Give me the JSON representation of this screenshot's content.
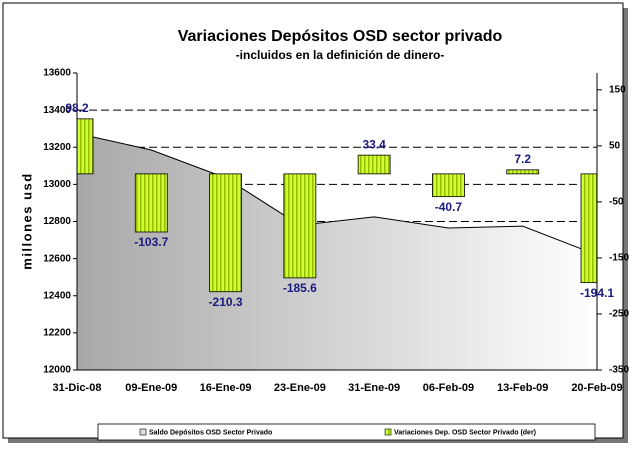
{
  "chart_data": {
    "type": "combo",
    "title": "Variaciones Depósitos OSD sector privado",
    "subtitle": "-incluidos en la definición de dinero-",
    "ylabel": "millones usd",
    "categories": [
      "31-Dic-08",
      "09-Ene-09",
      "16-Ene-09",
      "23-Ene-09",
      "31-Ene-09",
      "06-Feb-09",
      "13-Feb-09",
      "20-Feb-09"
    ],
    "series": [
      {
        "name": "Saldo Depósitos OSD Sector Privado",
        "type": "area",
        "color": "#c8c8c8",
        "values": [
          13275,
          13185,
          13035,
          12780,
          12825,
          12765,
          12775,
          12620
        ]
      },
      {
        "name": "Variaciones Dep. OSD Sector Privado (der)",
        "type": "bar",
        "axis": "y2",
        "color": "#ccff33",
        "values": [
          98.2,
          -103.7,
          -210.3,
          -185.6,
          33.4,
          -40.7,
          7.2,
          -194.1
        ]
      }
    ],
    "ylim": [
      12000,
      13600
    ],
    "yticks": [
      12000,
      12200,
      12400,
      12600,
      12800,
      13000,
      13200,
      13400,
      13600
    ],
    "y2lim": [
      -350,
      180
    ],
    "y2ticks": [
      -350,
      -250,
      -150,
      -50,
      50,
      150
    ],
    "grid": true,
    "legend": "bottom"
  }
}
